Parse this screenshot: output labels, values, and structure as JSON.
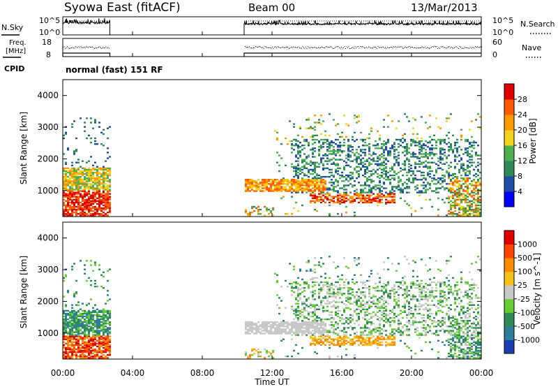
{
  "header": {
    "station": "Syowa East (fitACF)",
    "beam": "Beam 00",
    "date": "13/Mar/2013"
  },
  "mode_label": "normal (fast) 151 RF",
  "chart_data": [
    {
      "type": "line",
      "panel": "nsky-nsearch",
      "left_axis": {
        "label": "N.Sky",
        "ticks": [
          "10^5",
          "10^0"
        ]
      },
      "right_axis": {
        "label": "N.Search",
        "ticks": [
          "10^5",
          "10^0"
        ]
      },
      "x_range_hours": [
        0,
        24
      ],
      "data_gaps_hours": [
        [
          2.7,
          10.4
        ]
      ]
    },
    {
      "type": "line",
      "panel": "freq-nave",
      "left_axis": {
        "label": "Freq.",
        "unit": "[MHz]",
        "ticks": [
          "18",
          "8"
        ]
      },
      "right_axis": {
        "label": "Nave",
        "ticks": [
          "60",
          "0"
        ]
      },
      "x_range_hours": [
        0,
        24
      ],
      "data_gaps_hours": [
        [
          2.7,
          10.4
        ]
      ]
    },
    {
      "type": "heatmap",
      "panel": "power",
      "ylabel": "Slant Range [km]",
      "yticks": [
        "4000",
        "3000",
        "2000",
        "1000"
      ],
      "ylim": [
        180,
        4500
      ],
      "x_range_hours": [
        0,
        24
      ],
      "colorbar": {
        "label": "Power [dB]",
        "ticks": [
          "28",
          "24",
          "20",
          "16",
          "12",
          "8",
          "4"
        ],
        "colors": [
          "#0000ff",
          "#1f4ea8",
          "#2e8b57",
          "#4caf50",
          "#f2d21a",
          "#ff9900",
          "#ff5a00",
          "#e00000"
        ]
      }
    },
    {
      "type": "heatmap",
      "panel": "velocity",
      "ylabel": "Slant Range [km]",
      "yticks": [
        "4000",
        "3000",
        "2000",
        "1000"
      ],
      "ylim": [
        180,
        4500
      ],
      "x_range_hours": [
        0,
        24
      ],
      "xlabel": "Time UT",
      "xticks": [
        "00:00",
        "04:00",
        "08:00",
        "12:00",
        "16:00",
        "20:00",
        "00:00"
      ],
      "colorbar": {
        "label": "Velocity [m s^-1]",
        "ticks": [
          "1000",
          "500",
          "100",
          "25",
          "-25",
          "-100",
          "-500",
          "-1000"
        ],
        "colors": [
          "#1a3fb0",
          "#2e7d9a",
          "#2e8b57",
          "#66cc33",
          "#c8c8c8",
          "#f2c21a",
          "#ff8c00",
          "#ff4500",
          "#e00000"
        ]
      }
    }
  ]
}
